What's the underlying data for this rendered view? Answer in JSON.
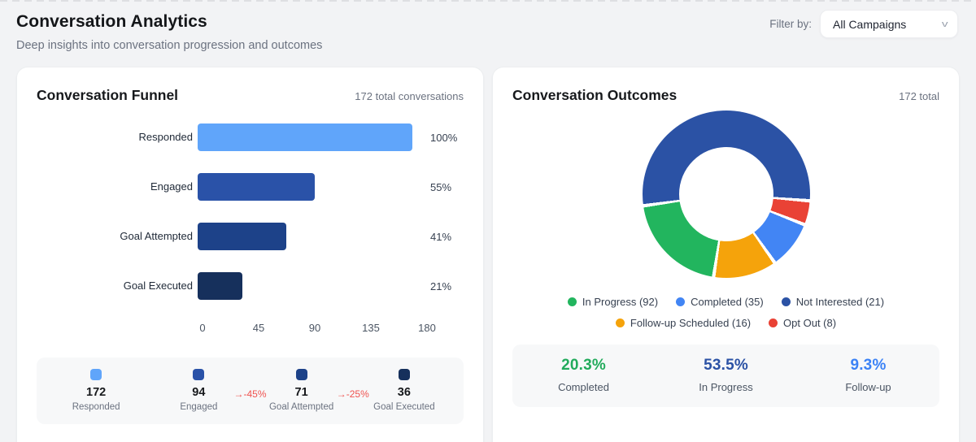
{
  "header": {
    "title": "Conversation Analytics",
    "subtitle": "Deep insights into conversation progression and outcomes",
    "filter_label": "Filter by:",
    "filter_value": "All Campaigns",
    "chevron_icon": "v"
  },
  "funnel": {
    "title": "Conversation Funnel",
    "total_label": "172 total conversations",
    "axis_max": 180,
    "axis_ticks": [
      "0",
      "45",
      "90",
      "135",
      "180"
    ],
    "stages": [
      {
        "label": "Responded",
        "value": 172,
        "count_label": "172",
        "pct_label": "100%",
        "color": "#60a5fa",
        "delta": null
      },
      {
        "label": "Engaged",
        "value": 94,
        "count_label": "94",
        "pct_label": "55%",
        "color": "#2a52a8",
        "delta": "→-45%"
      },
      {
        "label": "Goal Attempted",
        "value": 71,
        "count_label": "71",
        "pct_label": "41%",
        "color": "#1d4289",
        "delta": "→-25%"
      },
      {
        "label": "Goal Executed",
        "value": 36,
        "count_label": "36",
        "pct_label": "21%",
        "color": "#16305c",
        "delta": null
      }
    ],
    "delta_color": "#ef5350"
  },
  "outcomes": {
    "title": "Conversation Outcomes",
    "total_label": "172 total",
    "legend": [
      {
        "label": "In Progress (92)",
        "color": "#22b55e"
      },
      {
        "label": "Completed (35)",
        "color": "#4285f4"
      },
      {
        "label": "Not Interested (21)",
        "color": "#2b52a5"
      },
      {
        "label": "Follow-up Scheduled (16)",
        "color": "#f5a30b"
      },
      {
        "label": "Opt Out (8)",
        "color": "#e94235"
      }
    ],
    "donut": {
      "start_angle_deg": 262,
      "gap_color": "#ffffff",
      "slices": [
        {
          "value": 92,
          "color": "#2b52a5"
        },
        {
          "value": 8,
          "color": "#e94235"
        },
        {
          "value": 16,
          "color": "#4285f4"
        },
        {
          "value": 21,
          "color": "#f5a30b"
        },
        {
          "value": 35,
          "color": "#22b55e"
        }
      ]
    },
    "stats": [
      {
        "value": "20.3%",
        "label": "Completed",
        "color": "#22ab5c"
      },
      {
        "value": "53.5%",
        "label": "In Progress",
        "color": "#2b52a5"
      },
      {
        "value": "9.3%",
        "label": "Follow-up",
        "color": "#3b82f6"
      }
    ]
  },
  "chart_data": [
    {
      "type": "bar",
      "orientation": "horizontal",
      "title": "Conversation Funnel",
      "categories": [
        "Responded",
        "Engaged",
        "Goal Attempted",
        "Goal Executed"
      ],
      "values": [
        172,
        94,
        71,
        36
      ],
      "value_labels": [
        "100%",
        "55%",
        "41%",
        "21%"
      ],
      "stage_drop_labels": [
        null,
        "-45%",
        "-25%",
        null
      ],
      "xlabel": "",
      "ylabel": "",
      "xlim": [
        0,
        180
      ],
      "x_ticks": [
        0,
        45,
        90,
        135,
        180
      ],
      "grid": false,
      "total": 172,
      "bar_colors": [
        "#60a5fa",
        "#2a52a8",
        "#1d4289",
        "#16305c"
      ]
    },
    {
      "type": "pie",
      "title": "Conversation Outcomes",
      "labels": [
        "In Progress",
        "Completed",
        "Not Interested",
        "Follow-up Scheduled",
        "Opt Out"
      ],
      "values": [
        92,
        35,
        21,
        16,
        8
      ],
      "total": 172,
      "donut": true,
      "legend_position": "bottom",
      "summary": [
        {
          "label": "Completed",
          "pct": 20.3
        },
        {
          "label": "In Progress",
          "pct": 53.5
        },
        {
          "label": "Follow-up",
          "pct": 9.3
        }
      ]
    }
  ]
}
